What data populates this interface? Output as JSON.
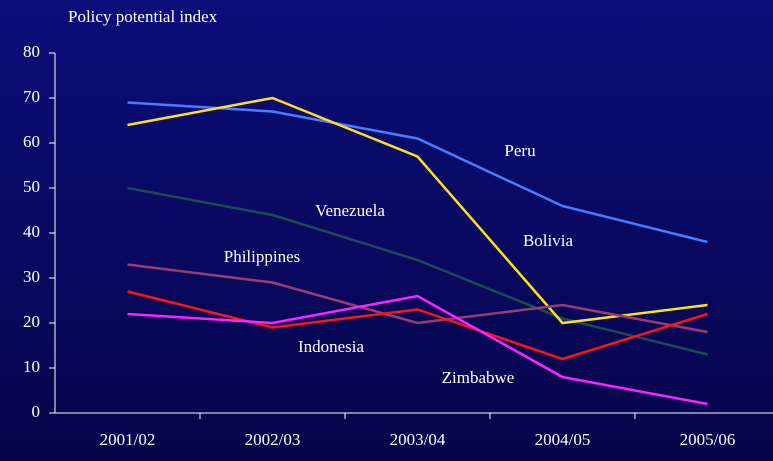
{
  "chart_data": {
    "type": "line",
    "title": "Policy potential index",
    "categories": [
      "2001/02",
      "2002/03",
      "2003/04",
      "2004/05",
      "2005/06"
    ],
    "series": [
      {
        "name": "Peru",
        "color": "#4a7cff",
        "values": [
          69,
          67,
          61,
          46,
          38
        ]
      },
      {
        "name": "Venezuela",
        "color": "#1e4a52",
        "values": [
          50,
          44,
          34,
          21,
          13
        ]
      },
      {
        "name": "Bolivia",
        "color": "#ffe020",
        "values": [
          64,
          70,
          57,
          20,
          24
        ]
      },
      {
        "name": "Philippines",
        "color": "#9a3c72",
        "values": [
          33,
          29,
          20,
          24,
          18
        ]
      },
      {
        "name": "Indonesia",
        "color": "#ff1414",
        "values": [
          27,
          19,
          23,
          12,
          22
        ]
      },
      {
        "name": "Zimbabwe",
        "color": "#ff22ff",
        "values": [
          22,
          20,
          26,
          8,
          2
        ]
      }
    ],
    "ylim": [
      0,
      80
    ],
    "yticks": [
      0,
      10,
      20,
      30,
      40,
      50,
      60,
      70,
      80
    ]
  }
}
